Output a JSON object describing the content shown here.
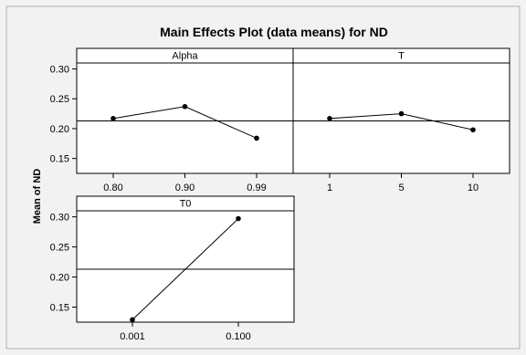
{
  "chart_data": {
    "type": "line",
    "title": "Main Effects Plot (data means) for ND",
    "ylabel": "Mean of ND",
    "ylim": [
      0.125,
      0.31
    ],
    "y_ticks": [
      "0.30",
      "0.25",
      "0.20",
      "0.15"
    ],
    "y_tick_values": [
      0.3,
      0.25,
      0.2,
      0.15
    ],
    "grand_mean": 0.213,
    "background_color": "#f2f2f2",
    "panel_background_color": "#ffffff",
    "line_color": "#000000",
    "panels": [
      {
        "name": "Alpha",
        "categories": [
          "0.80",
          "0.90",
          "0.99"
        ],
        "values": [
          0.217,
          0.237,
          0.184
        ]
      },
      {
        "name": "T",
        "categories": [
          "1",
          "5",
          "10"
        ],
        "values": [
          0.217,
          0.225,
          0.198
        ]
      },
      {
        "name": "T0",
        "categories": [
          "0.001",
          "0.100"
        ],
        "values": [
          0.129,
          0.297
        ]
      }
    ]
  }
}
